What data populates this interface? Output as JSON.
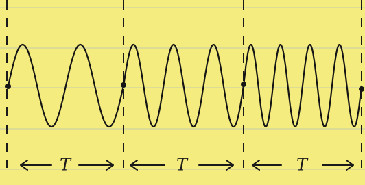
{
  "segments": [
    {
      "label": "T"
    },
    {
      "label": "T"
    },
    {
      "label": "T"
    }
  ]
}
